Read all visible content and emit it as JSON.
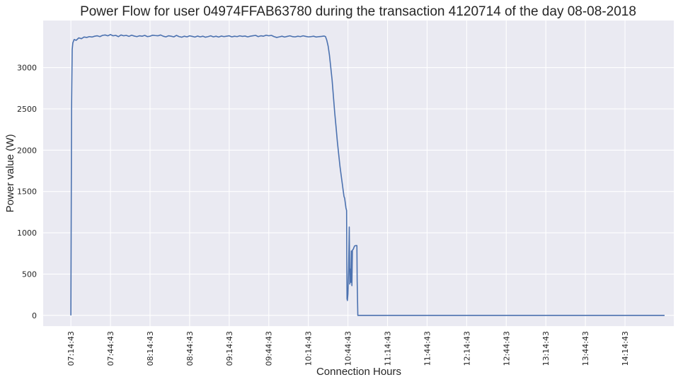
{
  "chart_data": {
    "type": "line",
    "title": "Power Flow for user 04974FFAB63780 during the transaction 4120714 of the day 08-08-2018",
    "xlabel": "Connection Hours",
    "ylabel": "Power value (W)",
    "x_tick_labels": [
      "07:14:43",
      "07:44:43",
      "08:14:43",
      "08:44:43",
      "09:14:43",
      "09:44:43",
      "10:14:43",
      "10:44:43",
      "11:14:43",
      "11:44:43",
      "12:14:43",
      "12:44:43",
      "13:14:43",
      "13:44:43",
      "14:14:43"
    ],
    "x_unit": "minutes since 07:14:43",
    "xlim": [
      -21,
      457
    ],
    "y_ticks": [
      0,
      500,
      1000,
      1500,
      2000,
      2500,
      3000
    ],
    "ylim": [
      -130,
      3570
    ],
    "grid": true,
    "series": [
      {
        "name": "Power",
        "color": "#4c72b0",
        "points": [
          [
            0,
            0
          ],
          [
            0.5,
            2500
          ],
          [
            1,
            3220
          ],
          [
            1.5,
            3300
          ],
          [
            2.5,
            3340
          ],
          [
            4,
            3330
          ],
          [
            6,
            3360
          ],
          [
            8,
            3350
          ],
          [
            10,
            3370
          ],
          [
            12,
            3365
          ],
          [
            14,
            3375
          ],
          [
            16,
            3370
          ],
          [
            18,
            3380
          ],
          [
            20,
            3385
          ],
          [
            22,
            3375
          ],
          [
            24,
            3390
          ],
          [
            26,
            3395
          ],
          [
            28,
            3385
          ],
          [
            30,
            3400
          ],
          [
            32,
            3385
          ],
          [
            34,
            3390
          ],
          [
            36,
            3375
          ],
          [
            38,
            3395
          ],
          [
            40,
            3385
          ],
          [
            42,
            3390
          ],
          [
            44,
            3378
          ],
          [
            46,
            3392
          ],
          [
            48,
            3382
          ],
          [
            50,
            3375
          ],
          [
            52,
            3385
          ],
          [
            54,
            3380
          ],
          [
            56,
            3390
          ],
          [
            58,
            3375
          ],
          [
            60,
            3380
          ],
          [
            62,
            3392
          ],
          [
            64,
            3388
          ],
          [
            66,
            3385
          ],
          [
            68,
            3395
          ],
          [
            70,
            3380
          ],
          [
            72,
            3372
          ],
          [
            74,
            3385
          ],
          [
            76,
            3380
          ],
          [
            78,
            3372
          ],
          [
            80,
            3390
          ],
          [
            82,
            3375
          ],
          [
            84,
            3368
          ],
          [
            86,
            3380
          ],
          [
            88,
            3372
          ],
          [
            90,
            3385
          ],
          [
            92,
            3378
          ],
          [
            94,
            3370
          ],
          [
            96,
            3382
          ],
          [
            98,
            3372
          ],
          [
            100,
            3380
          ],
          [
            102,
            3368
          ],
          [
            104,
            3375
          ],
          [
            106,
            3385
          ],
          [
            108,
            3372
          ],
          [
            110,
            3380
          ],
          [
            112,
            3370
          ],
          [
            114,
            3382
          ],
          [
            116,
            3375
          ],
          [
            118,
            3380
          ],
          [
            120,
            3385
          ],
          [
            122,
            3372
          ],
          [
            124,
            3380
          ],
          [
            126,
            3375
          ],
          [
            128,
            3385
          ],
          [
            130,
            3378
          ],
          [
            132,
            3382
          ],
          [
            134,
            3372
          ],
          [
            136,
            3380
          ],
          [
            138,
            3385
          ],
          [
            140,
            3390
          ],
          [
            142,
            3375
          ],
          [
            144,
            3385
          ],
          [
            146,
            3380
          ],
          [
            148,
            3392
          ],
          [
            150,
            3385
          ],
          [
            152,
            3390
          ],
          [
            154,
            3375
          ],
          [
            156,
            3365
          ],
          [
            158,
            3372
          ],
          [
            160,
            3380
          ],
          [
            162,
            3370
          ],
          [
            164,
            3378
          ],
          [
            166,
            3385
          ],
          [
            168,
            3375
          ],
          [
            170,
            3372
          ],
          [
            172,
            3380
          ],
          [
            174,
            3375
          ],
          [
            176,
            3385
          ],
          [
            178,
            3378
          ],
          [
            180,
            3372
          ],
          [
            182,
            3375
          ],
          [
            184,
            3380
          ],
          [
            186,
            3370
          ],
          [
            188,
            3375
          ],
          [
            190,
            3378
          ],
          [
            192,
            3382
          ],
          [
            193,
            3375
          ],
          [
            194,
            3330
          ],
          [
            195,
            3260
          ],
          [
            196,
            3150
          ],
          [
            197,
            3000
          ],
          [
            198,
            2850
          ],
          [
            199,
            2650
          ],
          [
            200,
            2450
          ],
          [
            201,
            2280
          ],
          [
            202,
            2100
          ],
          [
            203,
            1950
          ],
          [
            204,
            1800
          ],
          [
            205,
            1680
          ],
          [
            206,
            1560
          ],
          [
            207,
            1440
          ],
          [
            207.5,
            1420
          ],
          [
            208,
            1360
          ],
          [
            208.5,
            1300
          ],
          [
            209,
            1270
          ],
          [
            209.3,
            200
          ],
          [
            209.6,
            180
          ],
          [
            210,
            260
          ],
          [
            210.5,
            560
          ],
          [
            211,
            1070
          ],
          [
            211.4,
            380
          ],
          [
            211.8,
            560
          ],
          [
            212.2,
            400
          ],
          [
            212.6,
            780
          ],
          [
            213,
            360
          ],
          [
            213.4,
            790
          ],
          [
            214,
            800
          ],
          [
            215,
            840
          ],
          [
            216,
            845
          ],
          [
            216.8,
            845
          ],
          [
            217,
            420
          ],
          [
            217.5,
            0
          ],
          [
            450,
            0
          ]
        ]
      }
    ]
  }
}
